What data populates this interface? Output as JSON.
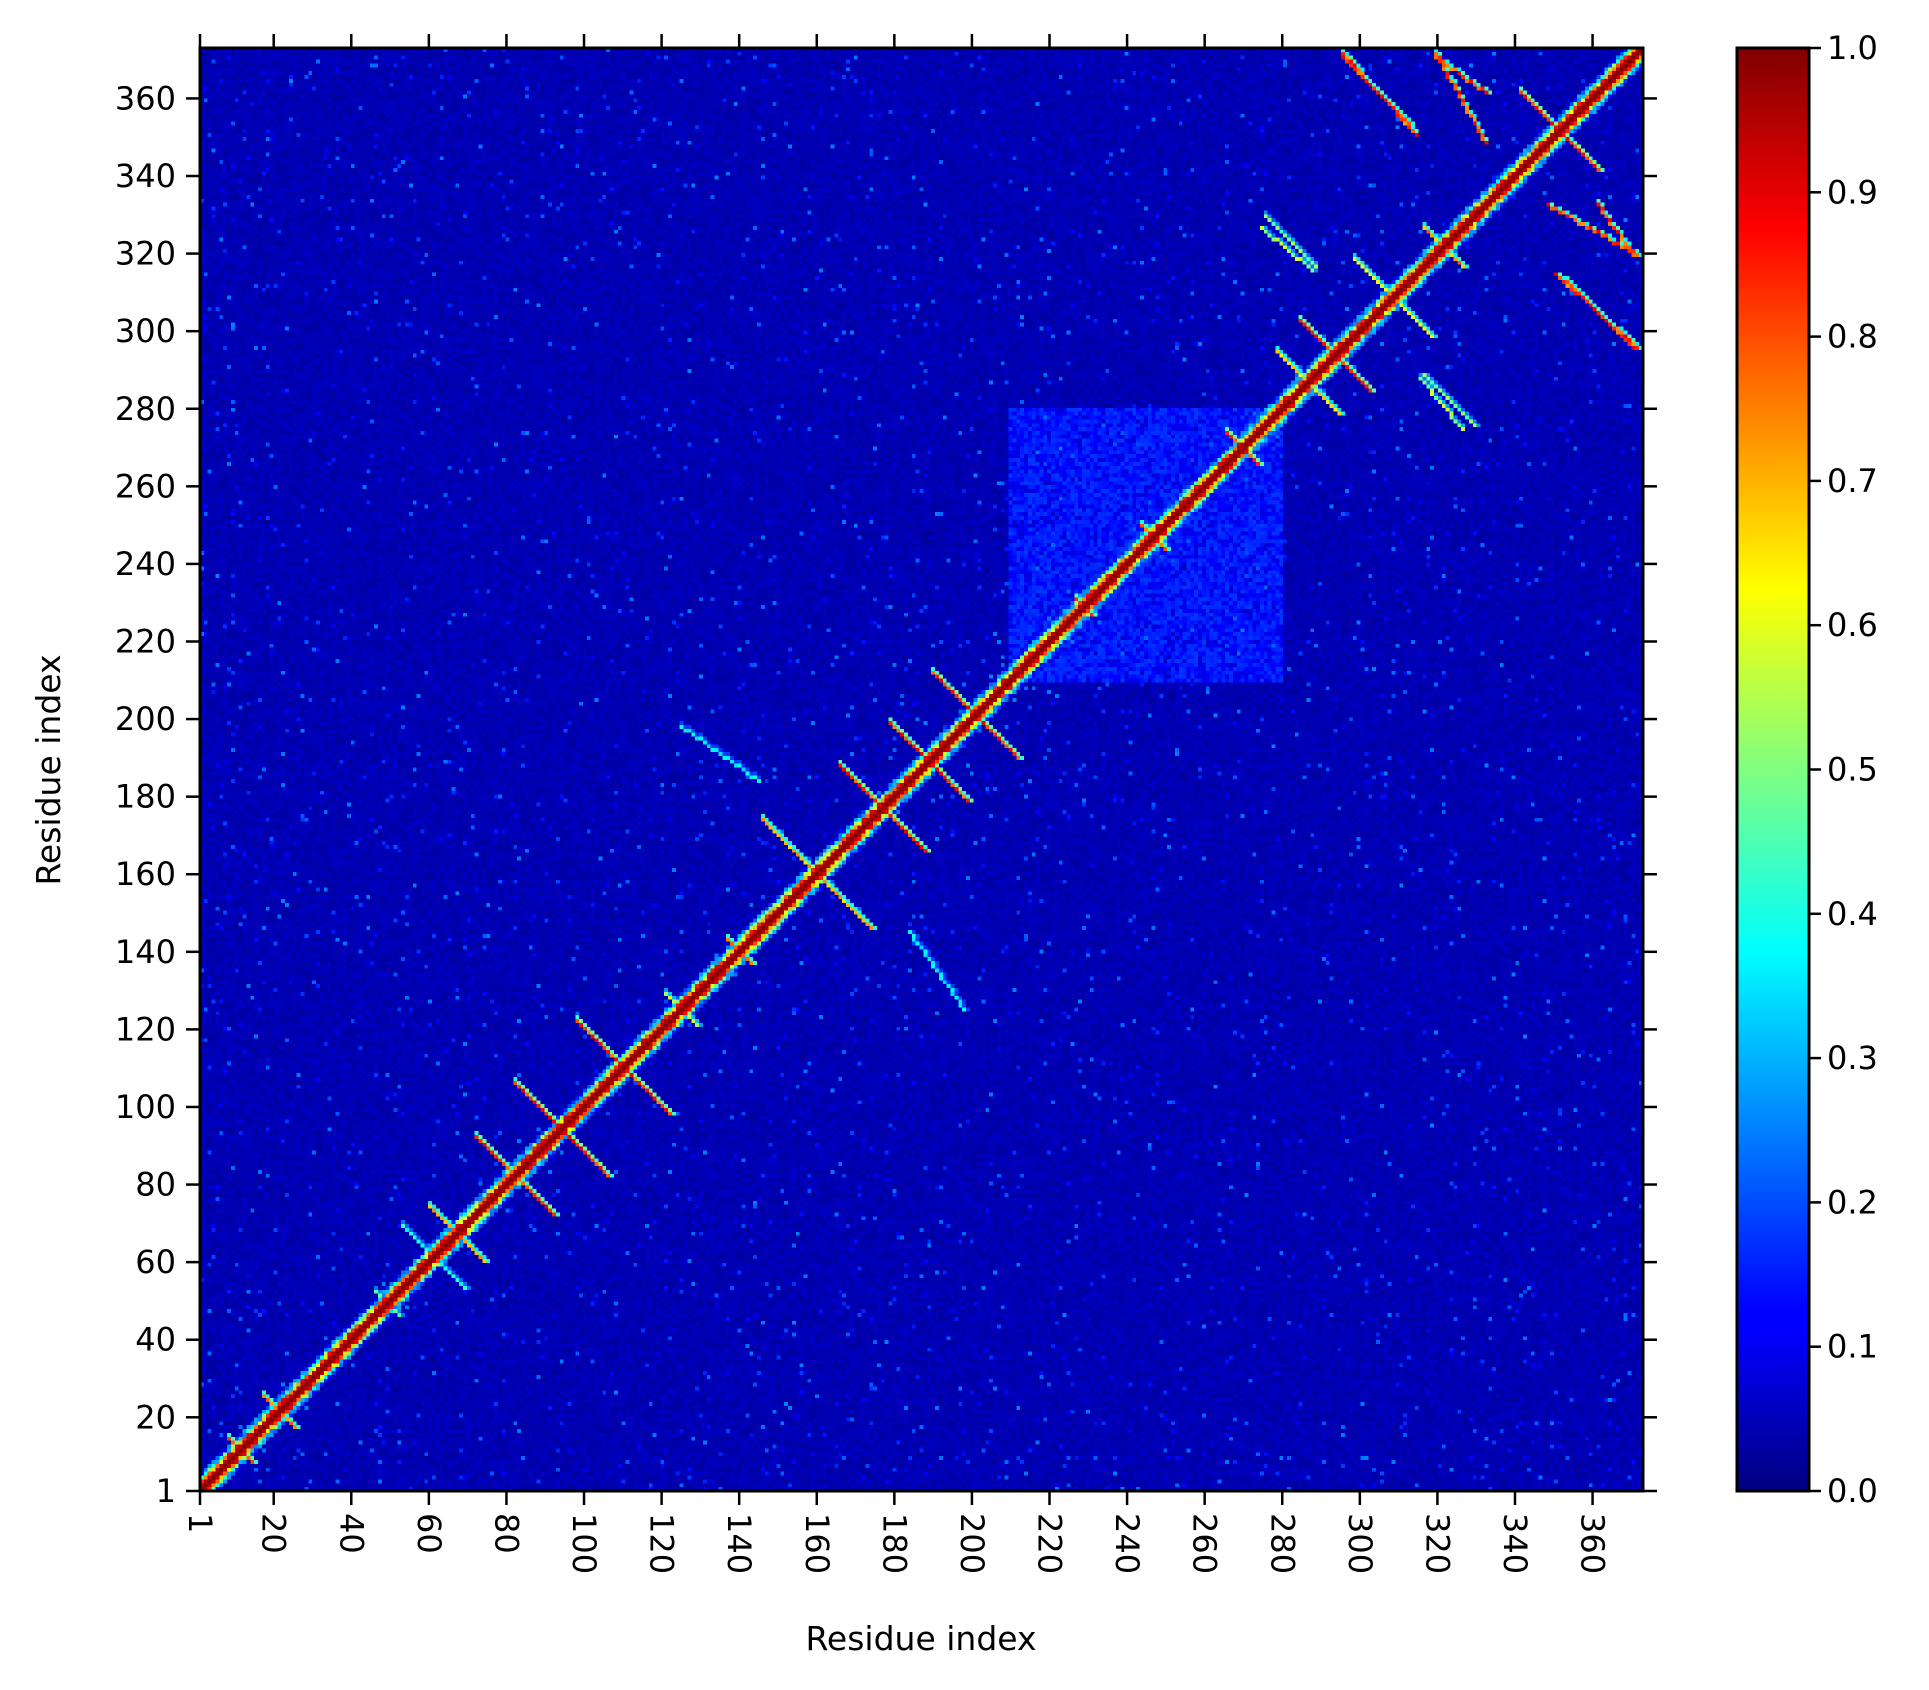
{
  "chart_data": {
    "type": "heatmap",
    "title": "",
    "xlabel": "Residue index",
    "ylabel": "Residue index",
    "n_residues": 373,
    "xlim": [
      1,
      373
    ],
    "ylim": [
      1,
      373
    ],
    "x_ticks": [
      1,
      20,
      40,
      60,
      80,
      100,
      120,
      140,
      160,
      180,
      200,
      220,
      240,
      260,
      280,
      300,
      320,
      340,
      360
    ],
    "y_ticks": [
      1,
      20,
      40,
      60,
      80,
      100,
      120,
      140,
      160,
      180,
      200,
      220,
      240,
      260,
      280,
      300,
      320,
      340,
      360
    ],
    "colorbar": {
      "colormap": "jet",
      "range": [
        0.0,
        1.0
      ],
      "ticks": [
        "0.0",
        "0.1",
        "0.2",
        "0.3",
        "0.4",
        "0.5",
        "0.6",
        "0.7",
        "0.8",
        "0.9",
        "1.0"
      ]
    },
    "background_value": 0.05,
    "diagonal_value": 1.0,
    "features": [
      {
        "kind": "antidiag",
        "center": 11,
        "half_len": 3,
        "value": 0.85
      },
      {
        "kind": "antidiag",
        "center": 21,
        "half_len": 4,
        "value": 0.8
      },
      {
        "kind": "antidiag",
        "center": 49,
        "half_len": 3,
        "value": 0.5
      },
      {
        "kind": "antidiag",
        "center": 61,
        "half_len": 8,
        "value": 0.45
      },
      {
        "kind": "antidiag",
        "center": 67,
        "half_len": 7,
        "value": 0.75
      },
      {
        "kind": "antidiag",
        "center": 82,
        "half_len": 10,
        "value": 0.9
      },
      {
        "kind": "antidiag",
        "center": 94,
        "half_len": 12,
        "value": 0.9
      },
      {
        "kind": "antidiag",
        "center": 110,
        "half_len": 12,
        "value": 0.9
      },
      {
        "kind": "antidiag",
        "center": 125,
        "half_len": 4,
        "value": 0.6
      },
      {
        "kind": "antidiag",
        "center": 140,
        "half_len": 3,
        "value": 0.8
      },
      {
        "kind": "antidiag",
        "center": 160,
        "half_len": 14,
        "value": 0.75
      },
      {
        "kind": "antidiag",
        "center": 177,
        "half_len": 11,
        "value": 0.9
      },
      {
        "kind": "antidiag",
        "center": 189,
        "half_len": 10,
        "value": 0.9
      },
      {
        "kind": "antidiag",
        "center": 201,
        "half_len": 11,
        "value": 0.9
      },
      {
        "kind": "antidiag",
        "center": 229,
        "half_len": 2,
        "value": 0.9
      },
      {
        "kind": "antidiag",
        "center": 247,
        "half_len": 3,
        "value": 0.9
      },
      {
        "kind": "antidiag",
        "center": 270,
        "half_len": 4,
        "value": 0.9
      },
      {
        "kind": "antidiag",
        "center": 287,
        "half_len": 8,
        "value": 0.7
      },
      {
        "kind": "antidiag",
        "center": 294,
        "half_len": 9,
        "value": 0.9
      },
      {
        "kind": "antidiag",
        "center": 309,
        "half_len": 10,
        "value": 0.65
      },
      {
        "kind": "antidiag",
        "center": 322,
        "half_len": 5,
        "value": 0.8
      },
      {
        "kind": "antidiag",
        "center": 352,
        "half_len": 10,
        "value": 0.9
      },
      {
        "kind": "parallel",
        "x1": 296,
        "y1": 371,
        "x2": 313,
        "y2": 354,
        "value": 0.9
      },
      {
        "kind": "parallel",
        "x1": 320,
        "y1": 371,
        "x2": 333,
        "y2": 362,
        "value": 0.9
      },
      {
        "kind": "parallel",
        "x1": 349,
        "y1": 333,
        "x2": 372,
        "y2": 320,
        "value": 0.9
      },
      {
        "kind": "parallel",
        "x1": 351,
        "y1": 315,
        "x2": 372,
        "y2": 296,
        "value": 0.9
      },
      {
        "kind": "parallel",
        "x1": 275,
        "y1": 327,
        "x2": 288,
        "y2": 316,
        "value": 0.6
      },
      {
        "kind": "parallel",
        "x1": 317,
        "y1": 289,
        "x2": 330,
        "y2": 276,
        "value": 0.55
      },
      {
        "kind": "parallel",
        "x1": 184,
        "y1": 145,
        "x2": 198,
        "y2": 125,
        "value": 0.4
      }
    ],
    "blocks": [
      {
        "x0": 210,
        "x1": 280,
        "y0": 210,
        "y1": 280,
        "value": 0.12
      }
    ]
  }
}
